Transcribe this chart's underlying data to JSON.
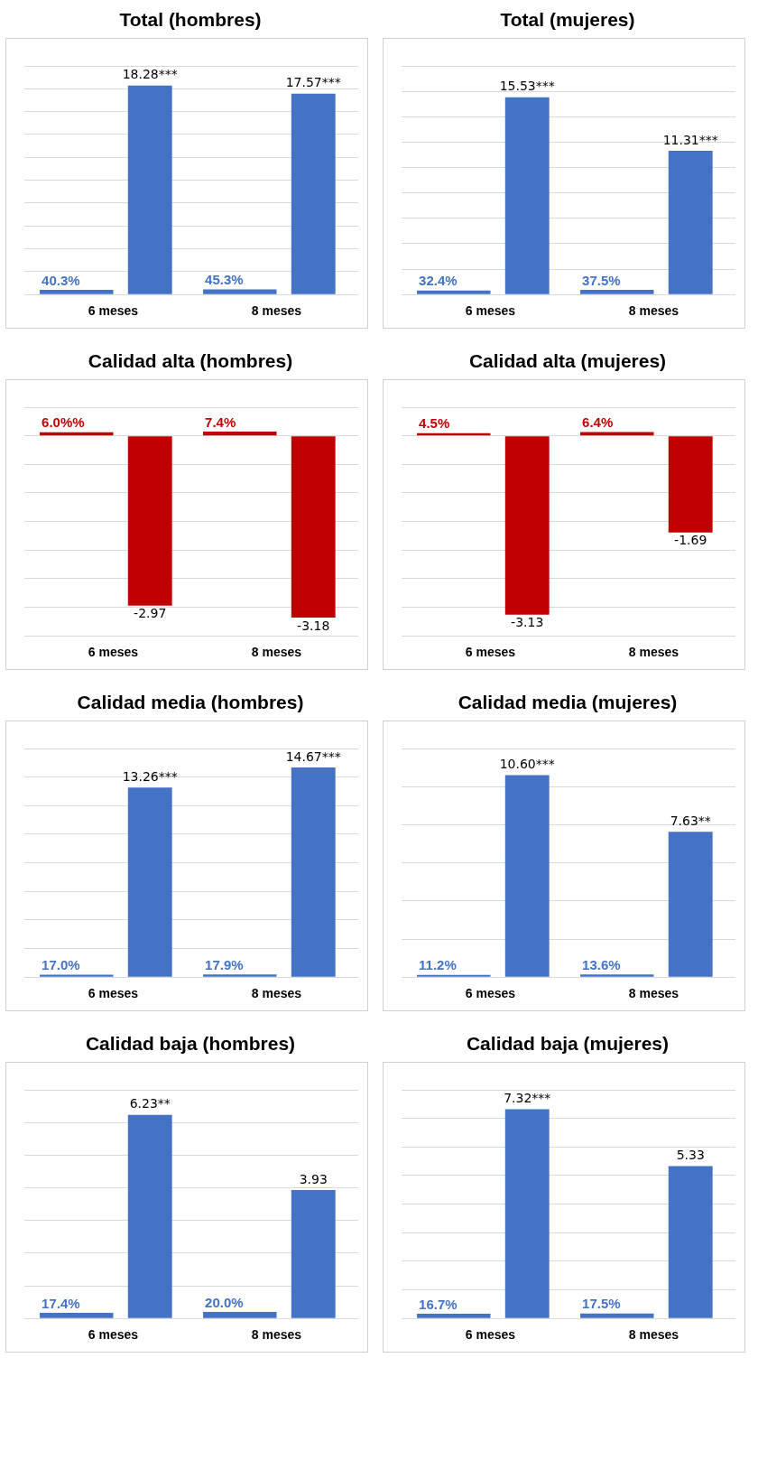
{
  "chart_data": [
    {
      "type": "bar",
      "title": "Total (hombres)",
      "categories": [
        "6 meses",
        "8 meses"
      ],
      "series": [
        {
          "color": "#4472c4",
          "values": [
            0.403,
            0.453
          ],
          "value_labels": [
            "40.3%",
            "45.3%"
          ]
        },
        {
          "color": "#4472c4",
          "values": [
            18.28,
            17.57
          ],
          "value_labels": [
            "18.28***",
            "17.57***"
          ]
        }
      ],
      "grid": "y",
      "tick_labels": "x"
    },
    {
      "type": "bar",
      "title": "Total (mujeres)",
      "categories": [
        "6 meses",
        "8 meses"
      ],
      "series": [
        {
          "color": "#4472c4",
          "values": [
            0.324,
            0.375
          ],
          "value_labels": [
            "32.4%",
            "37.5%"
          ]
        },
        {
          "color": "#4472c4",
          "values": [
            15.53,
            11.31
          ],
          "value_labels": [
            "15.53***",
            "11.31***"
          ]
        }
      ],
      "grid": "y",
      "tick_labels": "x"
    },
    {
      "type": "bar",
      "title": "Calidad alta (hombres)",
      "categories": [
        "6 meses",
        "8 meses"
      ],
      "series": [
        {
          "color": "#c00000",
          "values": [
            0.06,
            0.074
          ],
          "value_labels": [
            "6.0%%",
            "7.4%"
          ]
        },
        {
          "color": "#c00000",
          "values": [
            -2.97,
            -3.18
          ],
          "value_labels": [
            "-2.97",
            "-3.18"
          ]
        }
      ],
      "grid": "y",
      "tick_labels": "x"
    },
    {
      "type": "bar",
      "title": "Calidad alta (mujeres)",
      "categories": [
        "6 meses",
        "8 meses"
      ],
      "series": [
        {
          "color": "#c00000",
          "values": [
            0.045,
            0.064
          ],
          "value_labels": [
            "4.5%",
            "6.4%"
          ]
        },
        {
          "color": "#c00000",
          "values": [
            -3.13,
            -1.69
          ],
          "value_labels": [
            "-3.13",
            "-1.69"
          ]
        }
      ],
      "grid": "y",
      "tick_labels": "x"
    },
    {
      "type": "bar",
      "title": "Calidad media (hombres)",
      "categories": [
        "6 meses",
        "8 meses"
      ],
      "series": [
        {
          "color": "#4472c4",
          "values": [
            0.17,
            0.179
          ],
          "value_labels": [
            "17.0%",
            "17.9%"
          ]
        },
        {
          "color": "#4472c4",
          "values": [
            13.26,
            14.67
          ],
          "value_labels": [
            "13.26***",
            "14.67***"
          ]
        }
      ],
      "grid": "y",
      "tick_labels": "x"
    },
    {
      "type": "bar",
      "title": "Calidad media (mujeres)",
      "categories": [
        "6 meses",
        "8 meses"
      ],
      "series": [
        {
          "color": "#4472c4",
          "values": [
            0.112,
            0.136
          ],
          "value_labels": [
            "11.2%",
            "13.6%"
          ]
        },
        {
          "color": "#4472c4",
          "values": [
            10.6,
            7.63
          ],
          "value_labels": [
            "10.60***",
            "7.63**"
          ]
        }
      ],
      "grid": "y",
      "tick_labels": "x"
    },
    {
      "type": "bar",
      "title": "Calidad baja (hombres)",
      "categories": [
        "6 meses",
        "8 meses"
      ],
      "series": [
        {
          "color": "#4472c4",
          "values": [
            0.174,
            0.2
          ],
          "value_labels": [
            "17.4%",
            "20.0%"
          ]
        },
        {
          "color": "#4472c4",
          "values": [
            6.23,
            3.93
          ],
          "value_labels": [
            "6.23**",
            "3.93"
          ]
        }
      ],
      "grid": "y",
      "tick_labels": "x"
    },
    {
      "type": "bar",
      "title": "Calidad baja (mujeres)",
      "categories": [
        "6 meses",
        "8 meses"
      ],
      "series": [
        {
          "color": "#4472c4",
          "values": [
            0.167,
            0.175
          ],
          "value_labels": [
            "16.7%",
            "17.5%"
          ]
        },
        {
          "color": "#4472c4",
          "values": [
            7.32,
            5.33
          ],
          "value_labels": [
            "7.32***",
            "5.33"
          ]
        }
      ],
      "grid": "y",
      "tick_labels": "x"
    }
  ]
}
